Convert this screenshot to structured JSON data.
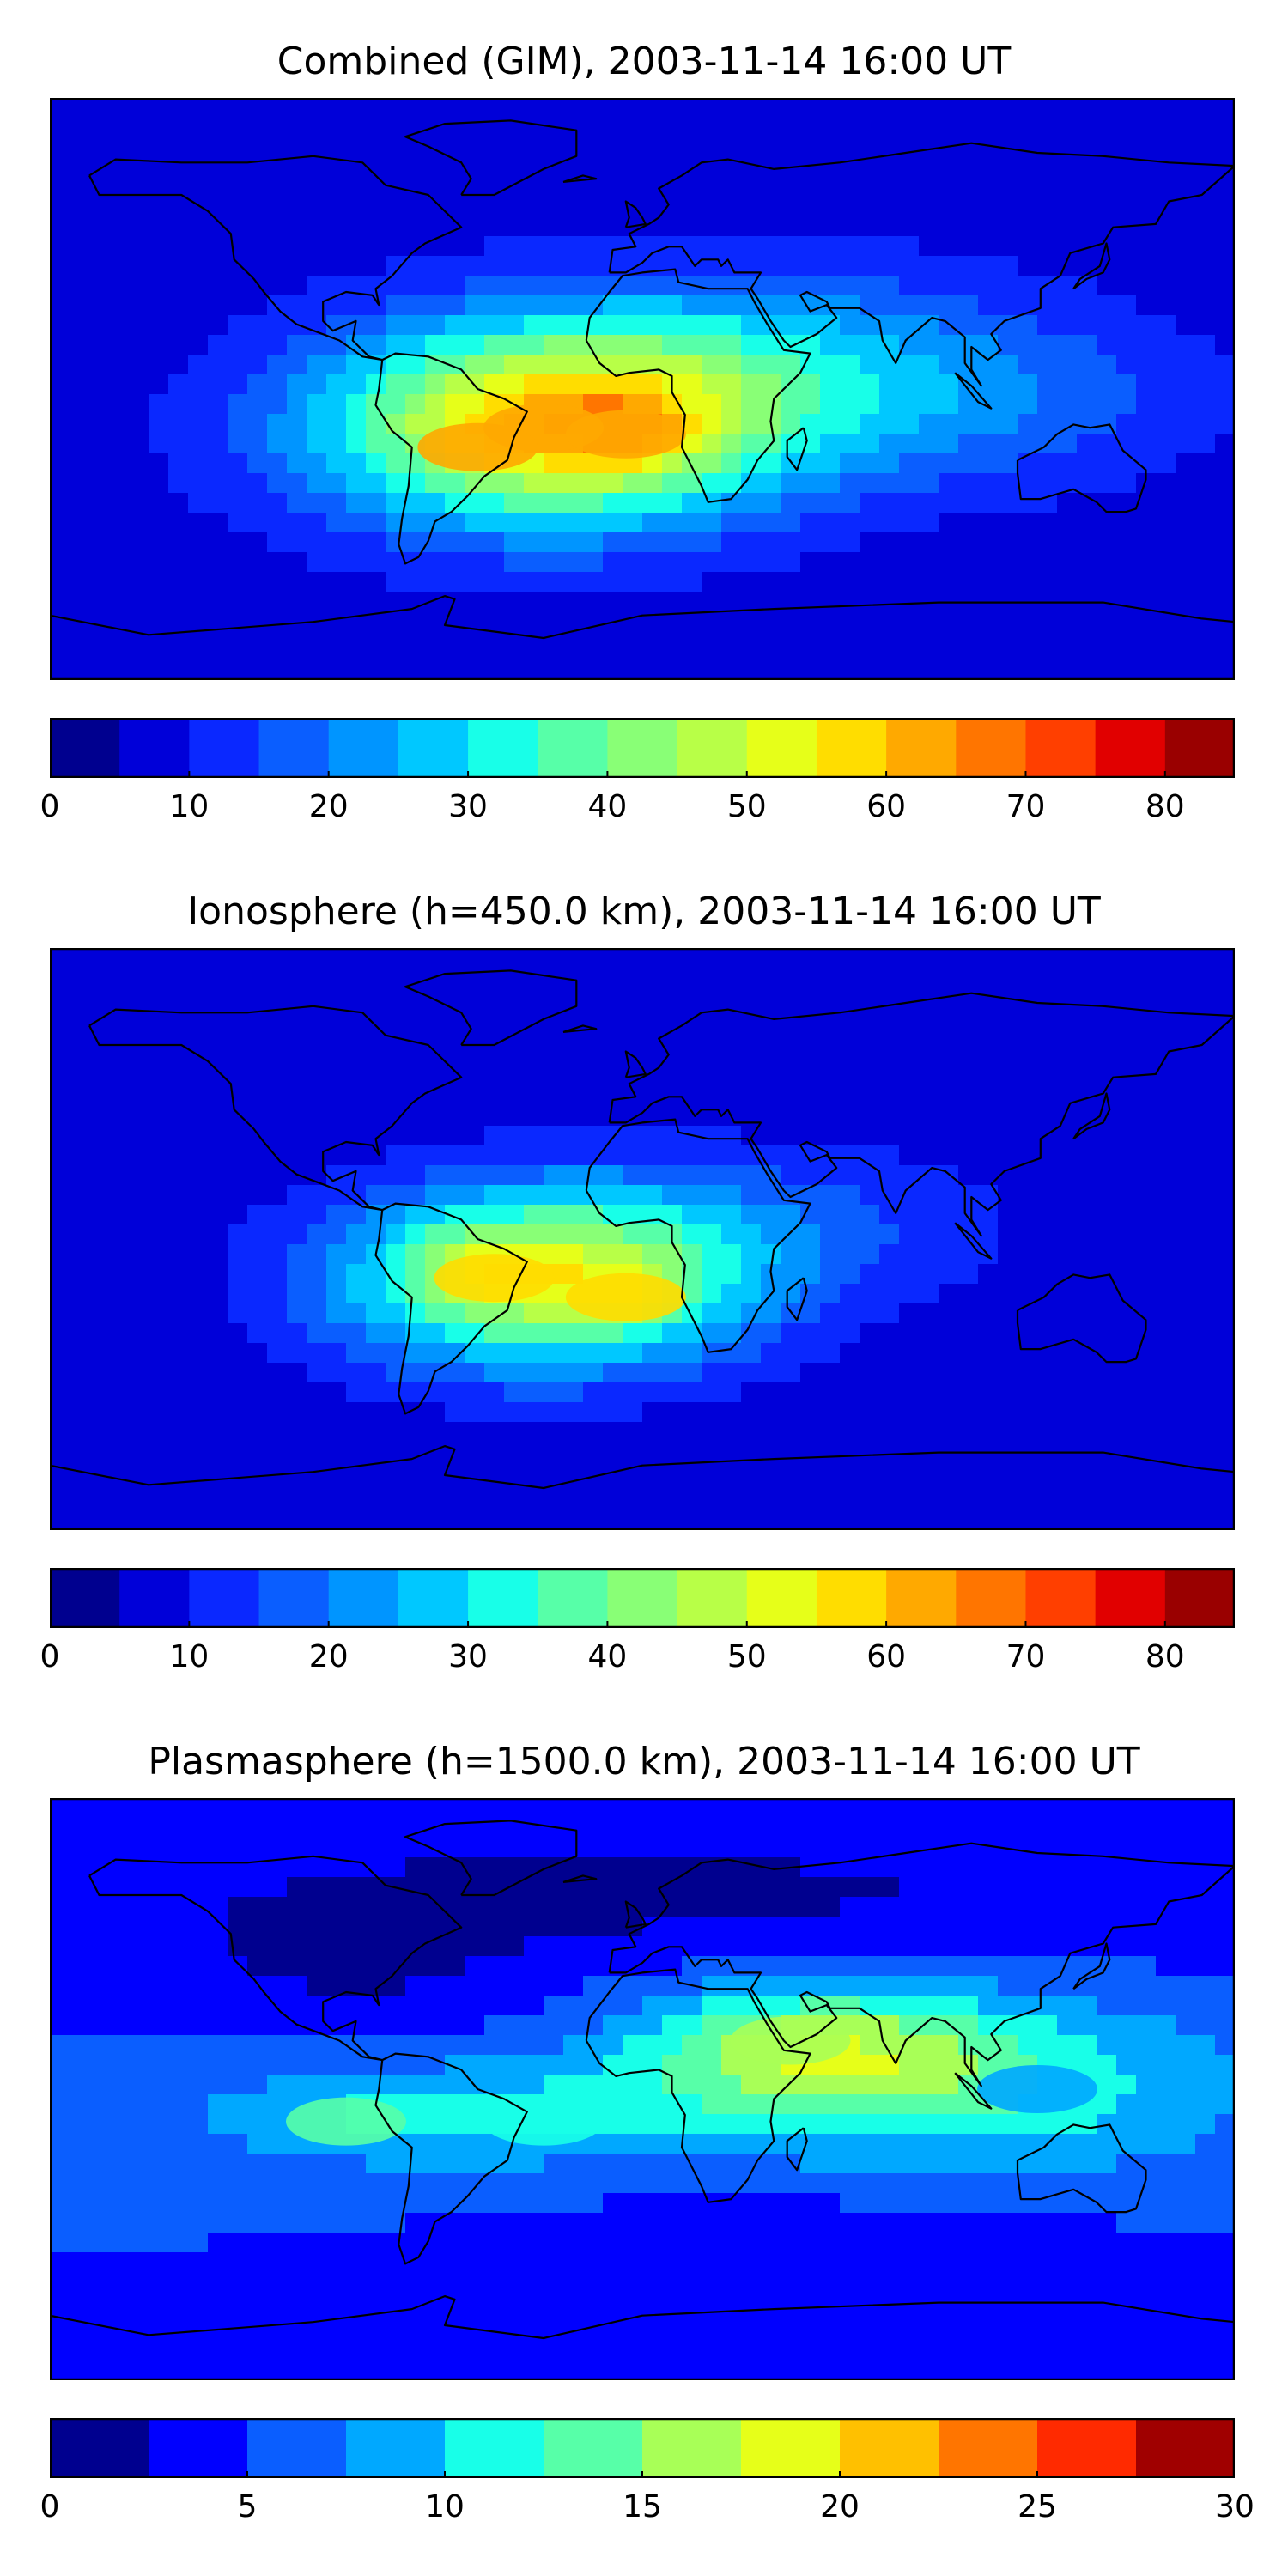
{
  "chart_data": [
    {
      "type": "heatmap",
      "title": "Combined (GIM), 2003-11-14 16:00 UT",
      "colorbar": {
        "levels": [
          0,
          5,
          10,
          15,
          20,
          25,
          30,
          35,
          40,
          45,
          50,
          55,
          60,
          65,
          70,
          75,
          80,
          85
        ],
        "tick_labels": [
          "0",
          "10",
          "20",
          "30",
          "40",
          "50",
          "60",
          "70",
          "80"
        ],
        "ticks": [
          0,
          10,
          20,
          30,
          40,
          50,
          60,
          70,
          80
        ],
        "colors": [
          "#00008f",
          "#0000d9",
          "#0a28ff",
          "#0a5eff",
          "#0095ff",
          "#00c8ff",
          "#18ffe8",
          "#57ffa8",
          "#89ff76",
          "#b8ff47",
          "#e6ff19",
          "#ffdd00",
          "#ffa900",
          "#ff7500",
          "#ff3f00",
          "#e10000",
          "#9a0000"
        ]
      },
      "blobs": [
        {
          "lon": -30,
          "lat": -12,
          "value": 60
        },
        {
          "lon": -5,
          "lat": -14,
          "value": 62
        },
        {
          "lon": -50,
          "lat": -18,
          "value": 60
        }
      ]
    },
    {
      "type": "heatmap",
      "title": "Ionosphere  (h=450.0 km), 2003-11-14 16:00 UT",
      "colorbar": {
        "levels": [
          0,
          5,
          10,
          15,
          20,
          25,
          30,
          35,
          40,
          45,
          50,
          55,
          60,
          65,
          70,
          75,
          80,
          85
        ],
        "tick_labels": [
          "0",
          "10",
          "20",
          "30",
          "40",
          "50",
          "60",
          "70",
          "80"
        ],
        "ticks": [
          0,
          10,
          20,
          30,
          40,
          50,
          60,
          70,
          80
        ],
        "colors": [
          "#00008f",
          "#0000d9",
          "#0a28ff",
          "#0a5eff",
          "#0095ff",
          "#00c8ff",
          "#18ffe8",
          "#57ffa8",
          "#89ff76",
          "#b8ff47",
          "#e6ff19",
          "#ffdd00",
          "#ffa900",
          "#ff7500",
          "#ff3f00",
          "#e10000",
          "#9a0000"
        ]
      },
      "blobs": [
        {
          "lon": -45,
          "lat": -12,
          "value": 57
        },
        {
          "lon": -5,
          "lat": -18,
          "value": 56
        }
      ]
    },
    {
      "type": "heatmap",
      "title": "Plasmasphere (h=1500.0 km), 2003-11-14 16:00 UT",
      "colorbar": {
        "levels": [
          0,
          2.5,
          5,
          7.5,
          10,
          12.5,
          15,
          17.5,
          20,
          22.5,
          25,
          27.5,
          30
        ],
        "tick_labels": [
          "0",
          "5",
          "10",
          "15",
          "20",
          "25",
          "30"
        ],
        "ticks": [
          0,
          5,
          10,
          15,
          20,
          25,
          30
        ],
        "colors": [
          "#00008f",
          "#0000ff",
          "#0a5eff",
          "#00a8ff",
          "#18ffe8",
          "#57ffa8",
          "#a8ff57",
          "#e6ff19",
          "#ffc000",
          "#ff7500",
          "#ff2a00",
          "#a00000"
        ]
      },
      "blobs": [
        {
          "lon": 45,
          "lat": 15,
          "value": 17
        },
        {
          "lon": -90,
          "lat": -10,
          "value": 13
        },
        {
          "lon": -30,
          "lat": -10,
          "value": 11
        },
        {
          "lon": 120,
          "lat": 0,
          "value": 8
        }
      ]
    }
  ]
}
